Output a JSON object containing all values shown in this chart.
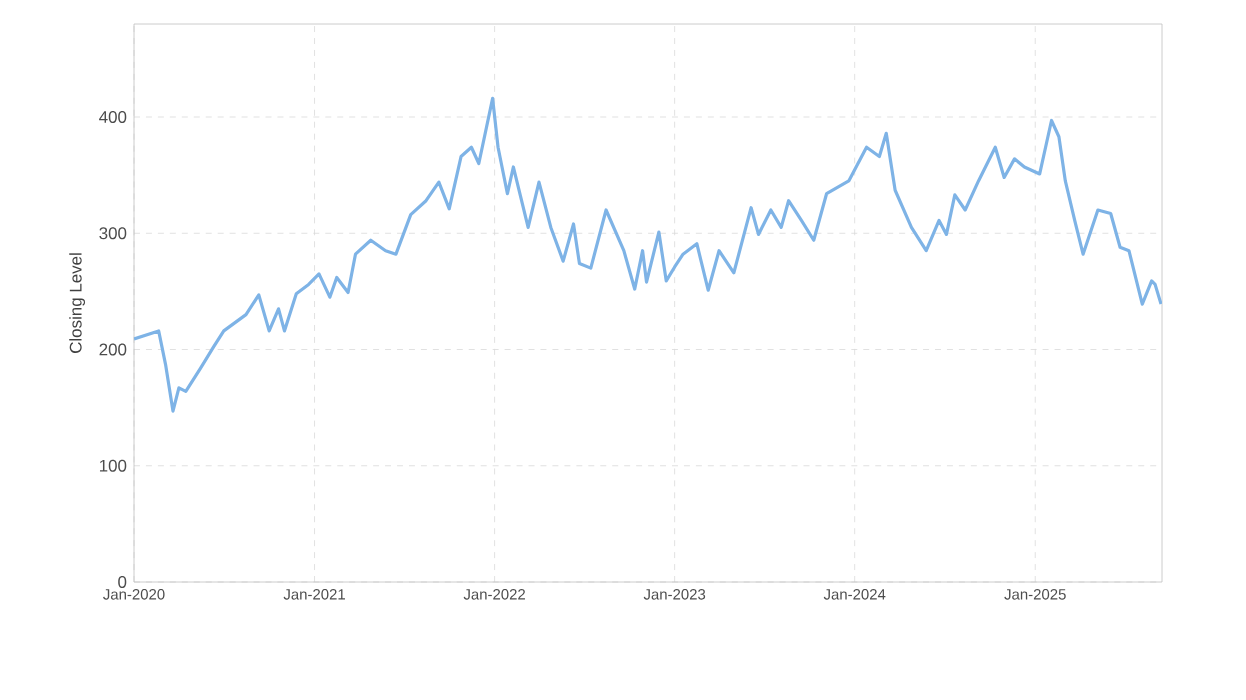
{
  "chart_data": {
    "type": "line",
    "ylabel": "Closing Level",
    "color": "#7eb3e6",
    "grid": true,
    "marker": "none",
    "line_style": "solid",
    "xlim": [
      "2020-01-01",
      "2025-09-15"
    ],
    "ylim": [
      0,
      480
    ],
    "xticks": [
      {
        "value": "2020-01-01",
        "label": "Jan-2020"
      },
      {
        "value": "2021-01-01",
        "label": "Jan-2021"
      },
      {
        "value": "2022-01-01",
        "label": "Jan-2022"
      },
      {
        "value": "2023-01-01",
        "label": "Jan-2023"
      },
      {
        "value": "2024-01-01",
        "label": "Jan-2024"
      },
      {
        "value": "2025-01-01",
        "label": "Jan-2025"
      }
    ],
    "yticks": [
      0,
      100,
      200,
      300,
      400
    ],
    "x": [
      "2020-01-01",
      "2020-02-20",
      "2020-03-05",
      "2020-03-20",
      "2020-04-01",
      "2020-04-15",
      "2020-05-15",
      "2020-06-10",
      "2020-07-01",
      "2020-08-15",
      "2020-09-10",
      "2020-10-01",
      "2020-10-20",
      "2020-11-01",
      "2020-11-25",
      "2020-12-20",
      "2021-01-10",
      "2021-02-01",
      "2021-02-15",
      "2021-03-10",
      "2021-03-25",
      "2021-04-25",
      "2021-05-25",
      "2021-06-15",
      "2021-07-15",
      "2021-08-15",
      "2021-09-10",
      "2021-10-01",
      "2021-10-25",
      "2021-11-15",
      "2021-11-30",
      "2021-12-28",
      "2022-01-08",
      "2022-01-27",
      "2022-02-08",
      "2022-03-10",
      "2022-04-01",
      "2022-04-25",
      "2022-05-20",
      "2022-06-10",
      "2022-06-22",
      "2022-07-15",
      "2022-08-15",
      "2022-09-20",
      "2022-10-12",
      "2022-10-28",
      "2022-11-05",
      "2022-11-30",
      "2022-12-15",
      "2023-01-01",
      "2023-01-18",
      "2023-02-15",
      "2023-03-10",
      "2023-04-01",
      "2023-05-01",
      "2023-06-05",
      "2023-06-20",
      "2023-07-15",
      "2023-08-05",
      "2023-08-20",
      "2023-09-15",
      "2023-10-10",
      "2023-11-05",
      "2023-12-20",
      "2024-01-25",
      "2024-02-20",
      "2024-03-05",
      "2024-03-23",
      "2024-04-25",
      "2024-05-25",
      "2024-06-20",
      "2024-07-05",
      "2024-07-22",
      "2024-08-12",
      "2024-09-08",
      "2024-10-12",
      "2024-10-30",
      "2024-11-20",
      "2024-12-10",
      "2025-01-10",
      "2025-02-03",
      "2025-02-18",
      "2025-03-03",
      "2025-03-22",
      "2025-04-08",
      "2025-05-08",
      "2025-06-03",
      "2025-06-22",
      "2025-07-10",
      "2025-08-06",
      "2025-08-25",
      "2025-09-01",
      "2025-09-13"
    ],
    "values": [
      209,
      216,
      187,
      147,
      167,
      164,
      184,
      202,
      216,
      230,
      247,
      216,
      235,
      216,
      248,
      256,
      265,
      245,
      262,
      249,
      282,
      294,
      285,
      282,
      316,
      328,
      344,
      321,
      366,
      374,
      360,
      416,
      374,
      334,
      357,
      305,
      344,
      305,
      276,
      308,
      274,
      270,
      320,
      285,
      252,
      285,
      258,
      301,
      259,
      271,
      282,
      291,
      251,
      285,
      266,
      322,
      299,
      320,
      305,
      328,
      311,
      294,
      334,
      345,
      374,
      366,
      386,
      337,
      305,
      285,
      311,
      299,
      333,
      320,
      345,
      374,
      348,
      364,
      357,
      351,
      397,
      383,
      345,
      311,
      282,
      320,
      317,
      288,
      285,
      239,
      259,
      256,
      239
    ]
  }
}
